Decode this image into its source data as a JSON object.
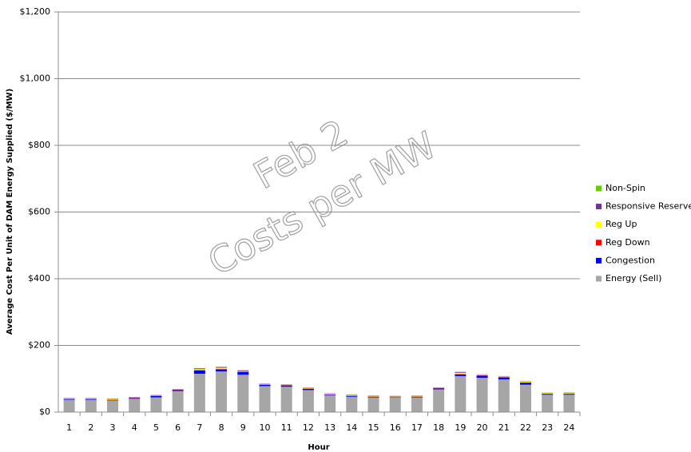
{
  "chart_data": {
    "type": "stacked-bar",
    "x_label": "Hour",
    "y_label": "Average Cost  Per Unit of DAM  Energy Supplied ($/MW)",
    "annotations": [
      "Feb 2",
      "Costs per MW"
    ],
    "categories": [
      "1",
      "2",
      "3",
      "4",
      "5",
      "6",
      "7",
      "8",
      "9",
      "10",
      "11",
      "12",
      "13",
      "14",
      "15",
      "16",
      "17",
      "18",
      "19",
      "20",
      "21",
      "22",
      "23",
      "24"
    ],
    "series": [
      {
        "name": "Energy (Sell)",
        "color": "#a6a6a6",
        "values": [
          37,
          37,
          35,
          40,
          44,
          63,
          115,
          122,
          112,
          78,
          76,
          66,
          50,
          46,
          44,
          44,
          44,
          68,
          108,
          103,
          98,
          82,
          52,
          52
        ]
      },
      {
        "name": "Congestion",
        "color": "#0000ff",
        "values": [
          2,
          2,
          1,
          2,
          4,
          3,
          10,
          6,
          8,
          4,
          4,
          4,
          2,
          2,
          2,
          1,
          2,
          3,
          5,
          6,
          6,
          6,
          2,
          2
        ]
      },
      {
        "name": "Reg Down",
        "color": "#ff0000",
        "values": [
          1,
          1,
          1,
          1,
          1,
          1,
          1,
          1,
          1,
          1,
          1,
          1,
          1,
          1,
          1,
          1,
          1,
          1,
          1,
          1,
          1,
          1,
          1,
          1
        ]
      },
      {
        "name": "Reg Up",
        "color": "#ffff00",
        "values": [
          1,
          1,
          2,
          1,
          1,
          1,
          3,
          4,
          2,
          1,
          1,
          1,
          2,
          2,
          1,
          1,
          1,
          1,
          4,
          2,
          2,
          2,
          2,
          2
        ]
      },
      {
        "name": "Responsive Reserve",
        "color": "#7030a0",
        "values": [
          1,
          1,
          1,
          1,
          1,
          1,
          2,
          2,
          2,
          1,
          1,
          1,
          1,
          1,
          1,
          1,
          1,
          1,
          2,
          1,
          1,
          1,
          1,
          1
        ]
      },
      {
        "name": "Non-Spin",
        "color": "#66cc00",
        "values": [
          0,
          0,
          1,
          0,
          0,
          0,
          1,
          1,
          1,
          0,
          0,
          0,
          0,
          1,
          0,
          1,
          0,
          0,
          1,
          0,
          0,
          0,
          0,
          1
        ]
      }
    ],
    "ylim": [
      0,
      1200
    ],
    "yticks": [
      {
        "value": 0,
        "label": "$0"
      },
      {
        "value": 200,
        "label": "$200"
      },
      {
        "value": 400,
        "label": "$400"
      },
      {
        "value": 600,
        "label": "$600"
      },
      {
        "value": 800,
        "label": "$800"
      },
      {
        "value": 1000,
        "label": "$1,000"
      },
      {
        "value": 1200,
        "label": "$1,200"
      }
    ],
    "grid": true
  }
}
